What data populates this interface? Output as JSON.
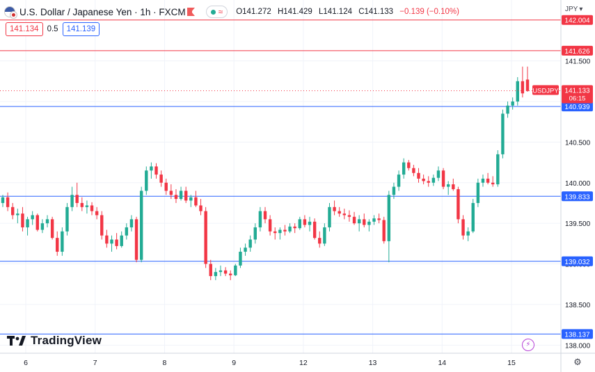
{
  "legend": {
    "symbol_title": "U.S. Dollar / Japanese Yen · 1h · FXCM",
    "open": "O141.272",
    "high": "H141.429",
    "low": "L141.124",
    "close": "C141.133",
    "change": "−0.139 (−0.10%)"
  },
  "quote": {
    "bid": "141.134",
    "spread": "0.5",
    "ask": "141.139"
  },
  "currency_label": "JPY",
  "logo_text": "TradingView",
  "colors": {
    "up": "#22ab94",
    "down": "#f23645",
    "resistance": "#f23645",
    "support": "#2962ff"
  },
  "chart_data": {
    "type": "candlestick",
    "symbol": "USDJPY",
    "x_ticks": [
      "6",
      "7",
      "8",
      "9",
      "12",
      "13",
      "14",
      "15"
    ],
    "y_ticks": [
      "141.500",
      "141.000",
      "140.500",
      "140.000",
      "139.500",
      "139.000",
      "138.500",
      "138.000"
    ],
    "ylim": [
      137.9,
      142.25
    ],
    "horizontal_lines": [
      {
        "value": 142.004,
        "label": "142.004",
        "kind": "resistance"
      },
      {
        "value": 141.626,
        "label": "141.626",
        "kind": "resistance"
      },
      {
        "value": 140.939,
        "label": "140.939",
        "kind": "support"
      },
      {
        "value": 139.833,
        "label": "139.833",
        "kind": "support"
      },
      {
        "value": 139.032,
        "label": "139.032",
        "kind": "support"
      },
      {
        "value": 138.137,
        "label": "138.137",
        "kind": "support"
      }
    ],
    "last_price": {
      "value": 141.133,
      "label": "141.133",
      "countdown": "06:15",
      "tag": "USDJPY"
    },
    "candles": [
      [
        139.75,
        139.85,
        139.7,
        139.82
      ],
      [
        139.82,
        139.88,
        139.65,
        139.7
      ],
      [
        139.7,
        139.75,
        139.55,
        139.6
      ],
      [
        139.6,
        139.68,
        139.5,
        139.62
      ],
      [
        139.62,
        139.7,
        139.4,
        139.45
      ],
      [
        139.45,
        139.58,
        139.35,
        139.55
      ],
      [
        139.55,
        139.65,
        139.48,
        139.6
      ],
      [
        139.6,
        139.62,
        139.4,
        139.42
      ],
      [
        139.42,
        139.55,
        139.38,
        139.5
      ],
      [
        139.5,
        139.6,
        139.45,
        139.55
      ],
      [
        139.55,
        139.58,
        139.3,
        139.32
      ],
      [
        139.32,
        139.4,
        139.1,
        139.15
      ],
      [
        139.15,
        139.45,
        139.1,
        139.4
      ],
      [
        139.4,
        139.75,
        139.35,
        139.7
      ],
      [
        139.7,
        139.95,
        139.65,
        139.85
      ],
      [
        139.85,
        140.0,
        139.7,
        139.75
      ],
      [
        139.75,
        139.82,
        139.65,
        139.7
      ],
      [
        139.7,
        139.78,
        139.62,
        139.72
      ],
      [
        139.72,
        139.76,
        139.6,
        139.65
      ],
      [
        139.65,
        139.7,
        139.55,
        139.6
      ],
      [
        139.6,
        139.65,
        139.3,
        139.35
      ],
      [
        139.35,
        139.42,
        139.2,
        139.25
      ],
      [
        139.25,
        139.35,
        139.15,
        139.3
      ],
      [
        139.3,
        139.38,
        139.18,
        139.22
      ],
      [
        139.22,
        139.4,
        139.2,
        139.35
      ],
      [
        139.35,
        139.5,
        139.3,
        139.45
      ],
      [
        139.45,
        139.6,
        139.4,
        139.55
      ],
      [
        139.55,
        139.58,
        139.02,
        139.05
      ],
      [
        139.05,
        139.95,
        139.02,
        139.9
      ],
      [
        139.9,
        140.2,
        139.85,
        140.15
      ],
      [
        140.15,
        140.25,
        140.05,
        140.2
      ],
      [
        140.2,
        140.24,
        140.05,
        140.1
      ],
      [
        140.1,
        140.15,
        139.95,
        140.0
      ],
      [
        140.0,
        140.05,
        139.85,
        139.9
      ],
      [
        139.9,
        139.98,
        139.8,
        139.85
      ],
      [
        139.85,
        139.92,
        139.75,
        139.8
      ],
      [
        139.8,
        139.95,
        139.78,
        139.9
      ],
      [
        139.9,
        139.95,
        139.75,
        139.78
      ],
      [
        139.78,
        139.85,
        139.7,
        139.82
      ],
      [
        139.82,
        139.9,
        139.7,
        139.72
      ],
      [
        139.72,
        139.8,
        139.6,
        139.65
      ],
      [
        139.65,
        139.7,
        138.95,
        139.0
      ],
      [
        139.0,
        139.05,
        138.8,
        138.85
      ],
      [
        138.85,
        138.95,
        138.8,
        138.9
      ],
      [
        138.9,
        138.98,
        138.85,
        138.92
      ],
      [
        138.92,
        138.96,
        138.85,
        138.88
      ],
      [
        138.88,
        138.92,
        138.8,
        138.86
      ],
      [
        138.86,
        139.0,
        138.85,
        138.98
      ],
      [
        138.98,
        139.2,
        138.95,
        139.15
      ],
      [
        139.15,
        139.25,
        139.1,
        139.2
      ],
      [
        139.2,
        139.35,
        139.15,
        139.3
      ],
      [
        139.3,
        139.5,
        139.25,
        139.45
      ],
      [
        139.45,
        139.7,
        139.4,
        139.65
      ],
      [
        139.65,
        139.7,
        139.5,
        139.55
      ],
      [
        139.55,
        139.6,
        139.35,
        139.4
      ],
      [
        139.4,
        139.45,
        139.3,
        139.38
      ],
      [
        139.38,
        139.45,
        139.3,
        139.42
      ],
      [
        139.42,
        139.48,
        139.35,
        139.4
      ],
      [
        139.4,
        139.5,
        139.38,
        139.46
      ],
      [
        139.46,
        139.5,
        139.38,
        139.44
      ],
      [
        139.44,
        139.58,
        139.42,
        139.55
      ],
      [
        139.55,
        139.6,
        139.45,
        139.48
      ],
      [
        139.48,
        139.58,
        139.4,
        139.52
      ],
      [
        139.52,
        139.56,
        139.3,
        139.32
      ],
      [
        139.32,
        139.4,
        139.2,
        139.25
      ],
      [
        139.25,
        139.5,
        139.22,
        139.45
      ],
      [
        139.45,
        139.75,
        139.4,
        139.7
      ],
      [
        139.7,
        139.78,
        139.6,
        139.65
      ],
      [
        139.65,
        139.7,
        139.58,
        139.62
      ],
      [
        139.62,
        139.68,
        139.55,
        139.6
      ],
      [
        139.6,
        139.66,
        139.52,
        139.58
      ],
      [
        139.58,
        139.64,
        139.48,
        139.5
      ],
      [
        139.5,
        139.6,
        139.4,
        139.55
      ],
      [
        139.55,
        139.62,
        139.45,
        139.48
      ],
      [
        139.48,
        139.55,
        139.4,
        139.52
      ],
      [
        139.52,
        139.6,
        139.48,
        139.56
      ],
      [
        139.56,
        139.62,
        139.5,
        139.54
      ],
      [
        139.54,
        139.58,
        139.25,
        139.28
      ],
      [
        139.28,
        139.9,
        139.02,
        139.85
      ],
      [
        139.85,
        140.0,
        139.8,
        139.95
      ],
      [
        139.95,
        140.15,
        139.9,
        140.1
      ],
      [
        140.1,
        140.3,
        140.05,
        140.25
      ],
      [
        140.25,
        140.28,
        140.15,
        140.18
      ],
      [
        140.18,
        140.22,
        140.08,
        140.12
      ],
      [
        140.12,
        140.18,
        140.0,
        140.05
      ],
      [
        140.05,
        140.1,
        139.98,
        140.02
      ],
      [
        140.02,
        140.08,
        139.95,
        140.0
      ],
      [
        140.0,
        140.1,
        139.96,
        140.06
      ],
      [
        140.06,
        140.2,
        140.02,
        140.15
      ],
      [
        140.15,
        140.18,
        139.92,
        139.95
      ],
      [
        139.95,
        140.02,
        139.85,
        139.98
      ],
      [
        139.98,
        140.05,
        139.9,
        139.92
      ],
      [
        139.92,
        139.95,
        139.5,
        139.55
      ],
      [
        139.55,
        139.6,
        139.3,
        139.35
      ],
      [
        139.35,
        139.45,
        139.28,
        139.4
      ],
      [
        139.4,
        139.8,
        139.38,
        139.75
      ],
      [
        139.75,
        140.05,
        139.7,
        140.0
      ],
      [
        140.0,
        140.1,
        139.95,
        140.05
      ],
      [
        140.05,
        140.12,
        139.98,
        140.0
      ],
      [
        140.0,
        140.08,
        139.95,
        139.98
      ],
      [
        139.98,
        140.4,
        139.95,
        140.35
      ],
      [
        140.35,
        140.9,
        140.3,
        140.85
      ],
      [
        140.85,
        141.0,
        140.8,
        140.95
      ],
      [
        140.95,
        141.05,
        140.9,
        141.0
      ],
      [
        141.0,
        141.3,
        140.95,
        141.25
      ],
      [
        141.25,
        141.43,
        141.05,
        141.1
      ],
      [
        141.27,
        141.43,
        141.12,
        141.13
      ]
    ]
  }
}
